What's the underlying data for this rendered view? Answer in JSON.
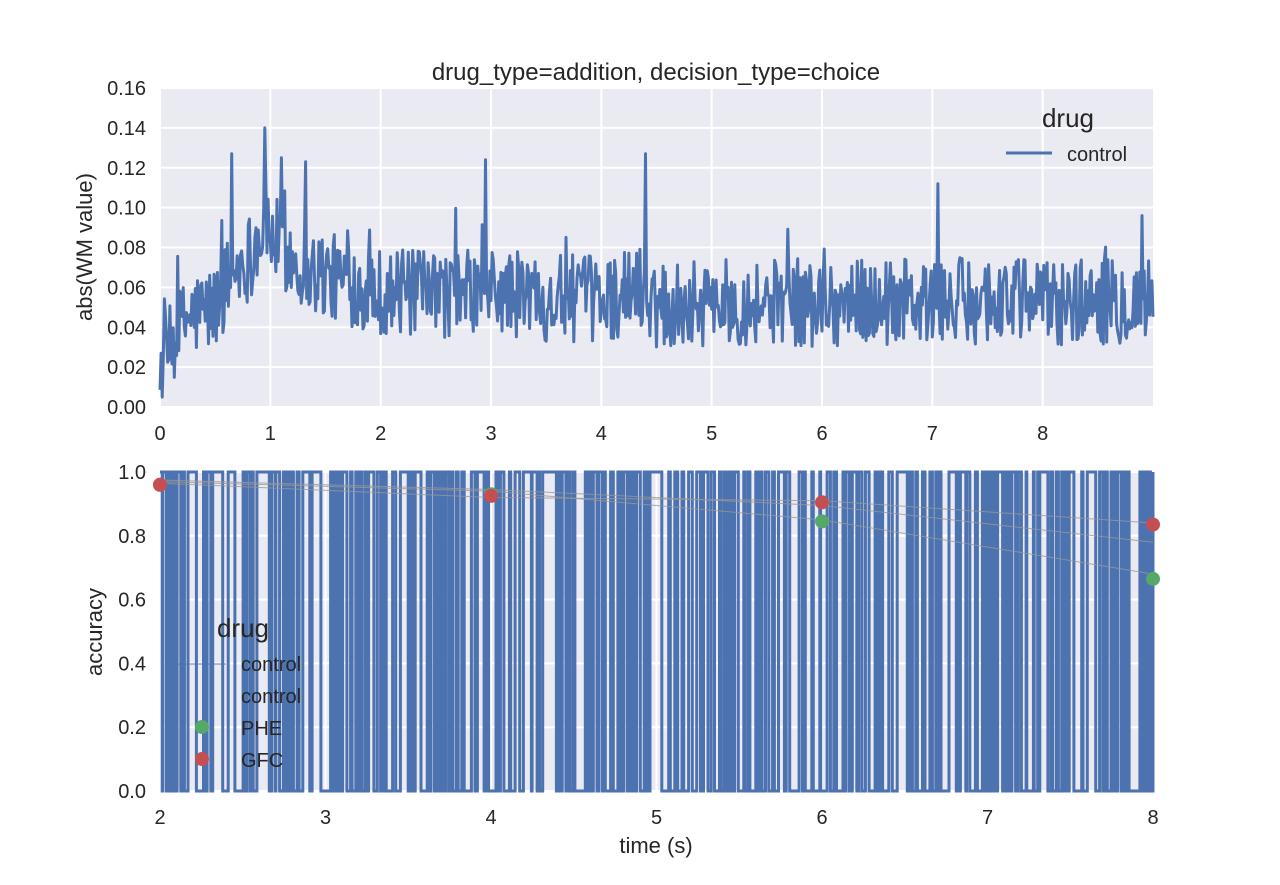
{
  "chart_data": [
    {
      "type": "line",
      "title": "drug_type=addition, decision_type=choice",
      "xlabel": "",
      "ylabel": "abs(WM value)",
      "xlim": [
        0,
        9
      ],
      "ylim": [
        0,
        0.16
      ],
      "x_ticks": [
        "0",
        "1",
        "2",
        "3",
        "4",
        "5",
        "6",
        "7",
        "8"
      ],
      "y_ticks": [
        "0.00",
        "0.02",
        "0.04",
        "0.06",
        "0.08",
        "0.10",
        "0.12",
        "0.14",
        "0.16"
      ],
      "grid": true,
      "legend": {
        "title": "drug",
        "position": "top-right",
        "entries": [
          "control"
        ]
      },
      "series": [
        {
          "name": "control",
          "color": "#4c72b0",
          "x": [
            0,
            0.25,
            0.5,
            0.65,
            0.8,
            0.95,
            1.1,
            1.3,
            1.5,
            1.75,
            2,
            2.5,
            2.95,
            3.5,
            4,
            4.4,
            4.5,
            5,
            5.5,
            6,
            6.5,
            7,
            7.5,
            8,
            8.5,
            9
          ],
          "y": [
            0.02,
            0.045,
            0.05,
            0.068,
            0.075,
            0.09,
            0.08,
            0.07,
            0.066,
            0.062,
            0.058,
            0.056,
            0.058,
            0.055,
            0.054,
            0.06,
            0.053,
            0.052,
            0.053,
            0.052,
            0.053,
            0.052,
            0.054,
            0.053,
            0.053,
            0.054
          ],
          "noise_amplitude": 0.022,
          "peaks": [
            [
              0.65,
              0.127
            ],
            [
              0.95,
              0.14
            ],
            [
              1.1,
              0.125
            ],
            [
              1.32,
              0.123
            ],
            [
              2.95,
              0.124
            ],
            [
              4.4,
              0.127
            ],
            [
              7.05,
              0.112
            ],
            [
              8.9,
              0.096
            ]
          ]
        }
      ]
    },
    {
      "type": "line",
      "title": "",
      "xlabel": "time (s)",
      "ylabel": "accuracy",
      "xlim": [
        2,
        8
      ],
      "ylim": [
        0,
        1
      ],
      "x_ticks": [
        "2",
        "3",
        "4",
        "5",
        "6",
        "7",
        "8"
      ],
      "y_ticks": [
        "0.0",
        "0.2",
        "0.4",
        "0.6",
        "0.8",
        "1.0"
      ],
      "grid": true,
      "legend": {
        "title": "drug",
        "position": "center-left",
        "entries": [
          {
            "label": "control",
            "marker": "line",
            "color": "#4c72b0"
          },
          {
            "label": "control",
            "marker": "none",
            "color": "#4c72b0"
          },
          {
            "label": "PHE",
            "marker": "dot",
            "color": "#55a868"
          },
          {
            "label": "GFC",
            "marker": "dot",
            "color": "#c44e52"
          }
        ]
      },
      "series": [
        {
          "name": "control",
          "color": "#4c72b0",
          "style": "binary-trace",
          "values": [
            0,
            1
          ]
        },
        {
          "name": "PHE",
          "color": "#55a868",
          "x": [
            2,
            4,
            6,
            8
          ],
          "y": [
            0.96,
            0.93,
            0.845,
            0.665
          ]
        },
        {
          "name": "GFC",
          "color": "#c44e52",
          "x": [
            2,
            4,
            6,
            8
          ],
          "y": [
            0.96,
            0.925,
            0.905,
            0.835
          ]
        }
      ],
      "faint_lines": [
        {
          "color": "#999999",
          "x": [
            2,
            4,
            6,
            8
          ],
          "y": [
            0.97,
            0.94,
            0.85,
            0.68
          ]
        },
        {
          "color": "#999999",
          "x": [
            2,
            4,
            6,
            8
          ],
          "y": [
            0.965,
            0.92,
            0.91,
            0.84
          ]
        },
        {
          "color": "#999999",
          "x": [
            2,
            4,
            6,
            8
          ],
          "y": [
            0.975,
            0.945,
            0.895,
            0.78
          ]
        }
      ]
    }
  ]
}
